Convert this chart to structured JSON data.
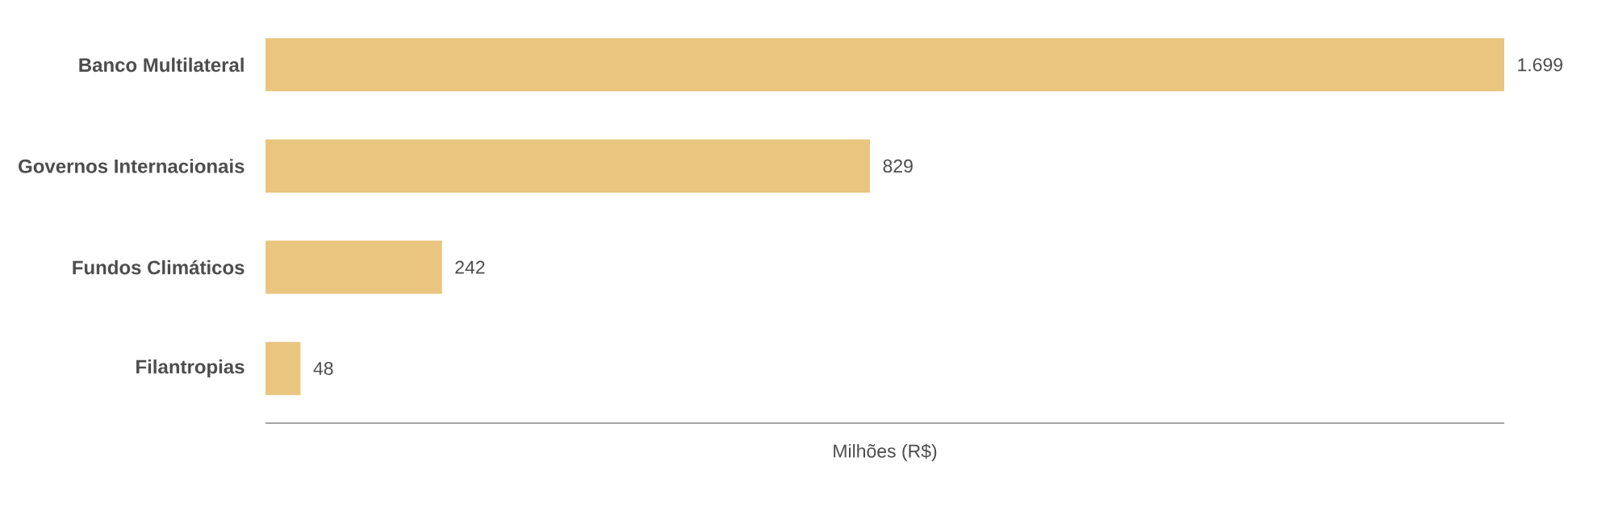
{
  "chart_data": {
    "type": "bar",
    "orientation": "horizontal",
    "xlabel": "Milhões (R$)",
    "categories": [
      "Banco Multilateral",
      "Governos Internacionais",
      "Fundos Climáticos",
      "Filantropias"
    ],
    "values": [
      1699,
      829,
      242,
      48
    ],
    "value_labels": [
      "1.699",
      "829",
      "242",
      "48"
    ],
    "color": "#e9c57f"
  }
}
